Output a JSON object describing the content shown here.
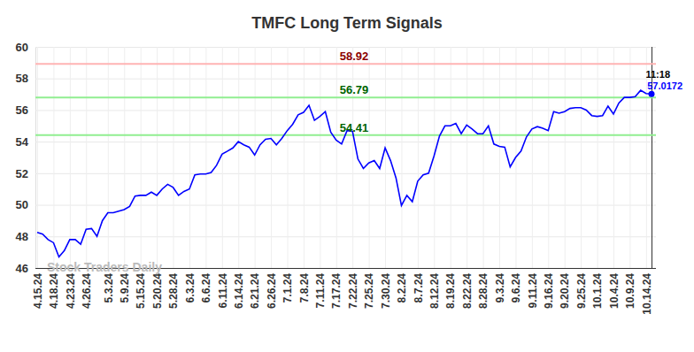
{
  "chart_data": {
    "type": "line",
    "title": "TMFC Long Term Signals",
    "categories": [
      "4.15.24",
      null,
      null,
      "4.18.24",
      null,
      null,
      "4.23.24",
      null,
      null,
      "4.26.24",
      null,
      null,
      null,
      "5.3.24",
      null,
      null,
      "5.9.24",
      null,
      null,
      "5.15.24",
      null,
      null,
      "5.20.24",
      null,
      null,
      "5.28.24",
      null,
      null,
      "6.3.24",
      null,
      null,
      "6.6.24",
      null,
      null,
      "6.11.24",
      null,
      null,
      "6.14.24",
      null,
      null,
      "6.21.24",
      null,
      null,
      "6.26.24",
      null,
      null,
      "7.1.24",
      null,
      null,
      "7.8.24",
      null,
      null,
      "7.11.24",
      null,
      null,
      "7.17.24",
      null,
      null,
      "7.22.24",
      null,
      null,
      "7.25.24",
      null,
      null,
      "7.30.24",
      null,
      null,
      "8.2.24",
      null,
      null,
      "8.7.24",
      null,
      null,
      "8.12.24",
      null,
      null,
      "8.19.24",
      null,
      null,
      "8.22.24",
      null,
      null,
      "8.28.24",
      null,
      null,
      "9.3.24",
      null,
      null,
      "9.6.24",
      null,
      null,
      "9.11.24",
      null,
      null,
      "9.16.24",
      null,
      null,
      "9.20.24",
      null,
      null,
      "9.25.24",
      null,
      null,
      "10.1.24",
      null,
      null,
      "10.4.24",
      null,
      null,
      "10.9.24",
      null,
      null,
      "10.14.24",
      null
    ],
    "values": [
      48.25,
      48.15,
      47.8,
      47.6,
      46.7,
      47.1,
      47.8,
      47.8,
      47.5,
      48.45,
      48.5,
      48.0,
      49.0,
      49.5,
      49.5,
      49.6,
      49.7,
      49.9,
      50.55,
      50.6,
      50.6,
      50.8,
      50.6,
      51.0,
      51.3,
      51.1,
      50.6,
      50.85,
      51.0,
      51.9,
      51.95,
      51.95,
      52.05,
      52.5,
      53.2,
      53.4,
      53.6,
      54.0,
      53.8,
      53.65,
      53.15,
      53.8,
      54.15,
      54.2,
      53.8,
      54.2,
      54.7,
      55.1,
      55.7,
      55.85,
      56.3,
      55.35,
      55.6,
      55.9,
      54.6,
      54.1,
      53.85,
      54.7,
      54.65,
      52.9,
      52.3,
      52.65,
      52.8,
      52.3,
      53.6,
      52.8,
      51.7,
      49.95,
      50.6,
      50.2,
      51.5,
      51.9,
      52.0,
      53.1,
      54.35,
      55.0,
      55.0,
      55.15,
      54.5,
      55.05,
      54.8,
      54.5,
      54.5,
      55.0,
      53.85,
      53.7,
      53.65,
      52.4,
      53.0,
      53.4,
      54.3,
      54.8,
      54.95,
      54.85,
      54.7,
      55.9,
      55.8,
      55.9,
      56.1,
      56.15,
      56.15,
      56.0,
      55.65,
      55.6,
      55.65,
      56.25,
      55.75,
      56.45,
      56.8,
      56.8,
      56.85,
      57.25,
      57.05,
      57.0172
    ],
    "color": "#0000ff",
    "ylim": [
      46,
      60
    ],
    "yticks": [
      46,
      48,
      50,
      52,
      54,
      56,
      58,
      60
    ],
    "grid": true,
    "reference_lines": [
      {
        "value": 58.92,
        "label": "58.92",
        "color": "#ffb3b3",
        "label_color": "#8b0000"
      },
      {
        "value": 56.79,
        "label": "56.79",
        "color": "#90ee90",
        "label_color": "#006400"
      },
      {
        "value": 54.41,
        "label": "54.41",
        "color": "#90ee90",
        "label_color": "#006400"
      }
    ],
    "annotations": [
      "11:18",
      "Stock Traders Daily"
    ]
  }
}
